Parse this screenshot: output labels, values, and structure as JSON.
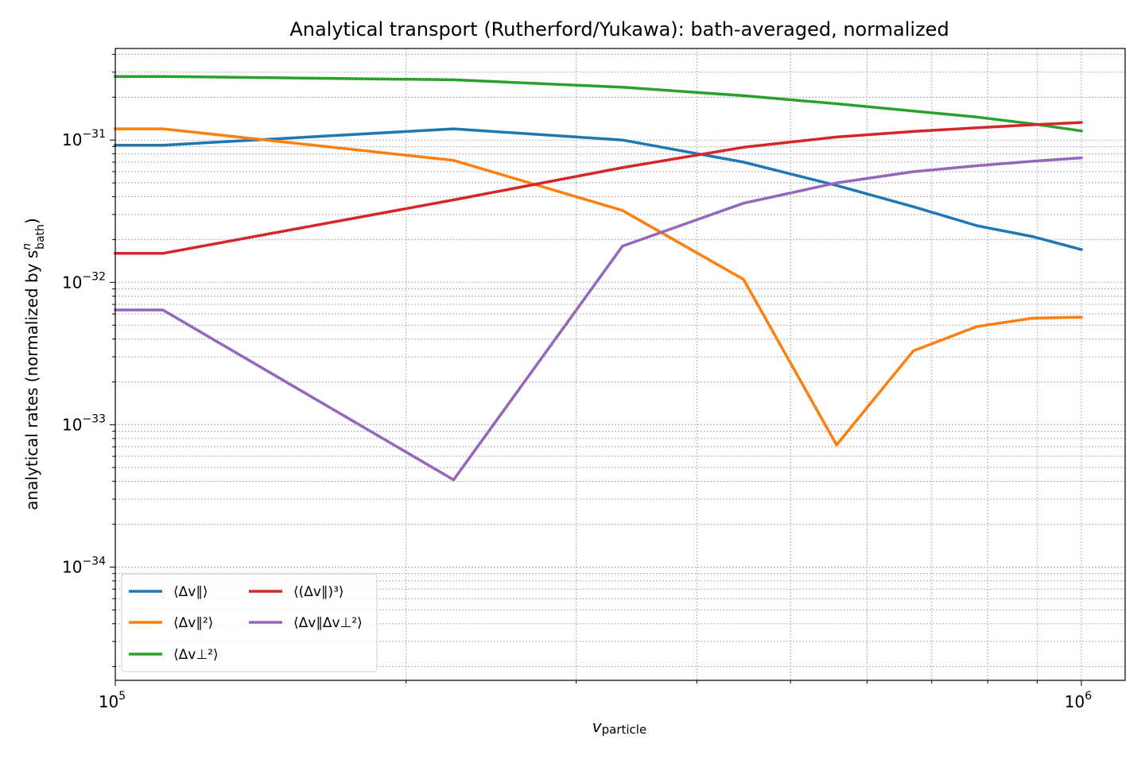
{
  "chart_data": {
    "type": "line",
    "title": "Analytical transport (Rutherford/Yukawa): bath-averaged, normalized",
    "xlabel": {
      "main": "v",
      "sub": "particle"
    },
    "ylabel": {
      "main": "analytical rates (normalized by s",
      "sup": "n",
      "sub": "bath",
      "close": ")"
    },
    "xscale": "log",
    "yscale": "log",
    "xlim": [
      100000,
      1110000
    ],
    "ylim": [
      1.6e-35,
      4.4e-31
    ],
    "grid": true,
    "legend_position": "lower-left",
    "xticks": [
      {
        "value": 100000,
        "base": "10",
        "exp": "5"
      },
      {
        "value": 1000000,
        "base": "10",
        "exp": "6"
      }
    ],
    "yticks": [
      {
        "value": 1e-31,
        "base": "10",
        "exp": "−31"
      },
      {
        "value": 1e-32,
        "base": "10",
        "exp": "−32"
      },
      {
        "value": 1e-33,
        "base": "10",
        "exp": "−33"
      },
      {
        "value": 1e-34,
        "base": "10",
        "exp": "−34"
      }
    ],
    "x": [
      100000,
      112000,
      224000,
      335000,
      447000,
      558000,
      670000,
      780000,
      890000,
      1000000
    ],
    "series": [
      {
        "name": "⟨Δv∥⟩",
        "color": "#1f77b4",
        "values": [
          9.2e-32,
          9.2e-32,
          1.2e-31,
          1e-31,
          7e-32,
          4.8e-32,
          3.4e-32,
          2.5e-32,
          2.1e-32,
          1.7e-32
        ]
      },
      {
        "name": "⟨Δv∥²⟩",
        "color": "#ff7f0e",
        "values": [
          1.2e-31,
          1.2e-31,
          7.2e-32,
          3.2e-32,
          1.05e-32,
          7.2e-34,
          3.3e-33,
          4.9e-33,
          5.6e-33,
          5.7e-33
        ]
      },
      {
        "name": "⟨Δv⊥²⟩",
        "color": "#2ca02c",
        "values": [
          2.8e-31,
          2.8e-31,
          2.65e-31,
          2.35e-31,
          2.05e-31,
          1.8e-31,
          1.6e-31,
          1.45e-31,
          1.3e-31,
          1.16e-31
        ]
      },
      {
        "name": "⟨(Δv∥)³⟩",
        "color": "#d62728",
        "values": [
          1.6e-32,
          1.6e-32,
          3.8e-32,
          6.4e-32,
          8.9e-32,
          1.05e-31,
          1.15e-31,
          1.22e-31,
          1.28e-31,
          1.33e-31
        ]
      },
      {
        "name": "⟨Δv∥Δv⊥²⟩",
        "color": "#9467bd",
        "values": [
          6.4e-33,
          6.4e-33,
          4.1e-34,
          1.8e-32,
          3.6e-32,
          5e-32,
          6e-32,
          6.6e-32,
          7.1e-32,
          7.5e-32
        ]
      }
    ]
  }
}
